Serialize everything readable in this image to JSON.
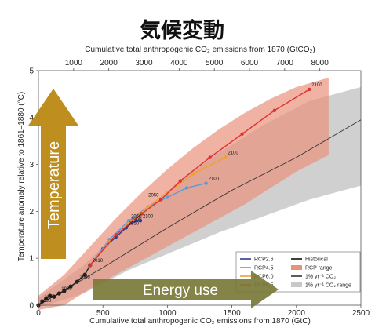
{
  "title": "気候変動",
  "chart_data": {
    "type": "line",
    "xlabel_bottom": "Cumulative total anthropogenic CO₂ emissions from 1870 (GtC)",
    "xlabel_top": "Cumulative total anthropogenic CO₂ emissions from 1870 (GtCO₂)",
    "ylabel": "Temperature anomaly relative to 1861–1880 (°C)",
    "xlim": [
      0,
      2500
    ],
    "ylim": [
      0,
      5
    ],
    "x_ticks": [
      "0",
      "500",
      "1000",
      "1500",
      "2000",
      "2500"
    ],
    "x_ticks_top": [
      "1000",
      "2000",
      "3000",
      "4000",
      "5000",
      "6000",
      "7000",
      "8000"
    ],
    "y_ticks": [
      "0",
      "1",
      "2",
      "3",
      "4",
      "5"
    ],
    "series": [
      {
        "name": "Historical",
        "color": "#222222",
        "x": [
          0,
          30,
          60,
          90,
          120,
          160,
          200,
          250,
          300,
          360,
          400
        ],
        "y": [
          0.0,
          0.08,
          0.15,
          0.2,
          0.18,
          0.25,
          0.3,
          0.4,
          0.5,
          0.65,
          0.85
        ],
        "labels": [
          {
            "i": 0,
            "text": "1890"
          },
          {
            "i": 1,
            "text": "1950"
          },
          {
            "i": 5,
            "text": "1980"
          },
          {
            "i": 8,
            "text": "2000"
          },
          {
            "i": 10,
            "text": "2010"
          }
        ]
      },
      {
        "name": "RCP2.6",
        "color": "#2b3a8f",
        "x": [
          400,
          500,
          600,
          680,
          720,
          760,
          790
        ],
        "y": [
          0.85,
          1.2,
          1.45,
          1.65,
          1.75,
          1.8,
          1.8
        ],
        "labels": [
          {
            "i": 3,
            "text": "2050"
          },
          {
            "i": 6,
            "text": "2100"
          }
        ]
      },
      {
        "name": "RCP4.5",
        "color": "#5e9ad6",
        "x": [
          400,
          550,
          700,
          850,
          1000,
          1150,
          1300
        ],
        "y": [
          0.85,
          1.4,
          1.8,
          2.1,
          2.3,
          2.5,
          2.6
        ],
        "labels": [
          {
            "i": 2,
            "text": "2050"
          },
          {
            "i": 6,
            "text": "2100"
          }
        ]
      },
      {
        "name": "RCP6.0",
        "color": "#f0a030",
        "x": [
          400,
          550,
          700,
          850,
          1000,
          1200,
          1450
        ],
        "y": [
          0.85,
          1.35,
          1.75,
          2.1,
          2.4,
          2.8,
          3.15
        ],
        "labels": [
          {
            "i": 2,
            "text": "2050"
          },
          {
            "i": 6,
            "text": "2100"
          }
        ]
      },
      {
        "name": "RCP8.5",
        "color": "#e03030",
        "x": [
          400,
          600,
          800,
          950,
          1100,
          1330,
          1580,
          1830,
          2100
        ],
        "y": [
          0.85,
          1.5,
          1.95,
          2.25,
          2.65,
          3.15,
          3.65,
          4.15,
          4.6
        ],
        "labels": [
          {
            "i": 3,
            "text": "2050"
          },
          {
            "i": 8,
            "text": "2100"
          }
        ]
      },
      {
        "name": "1% yr⁻¹ CO₂",
        "color": "#333333",
        "x": [
          0,
          500,
          1000,
          1500,
          2000,
          2500
        ],
        "y": [
          0.0,
          0.8,
          1.65,
          2.45,
          3.15,
          3.95
        ],
        "labels": []
      }
    ],
    "bands": [
      {
        "name": "1% yr⁻¹ CO₂ range",
        "color": "#c8c8c8",
        "x": [
          0,
          350,
          700,
          1050,
          1400,
          1750,
          2100,
          2500
        ],
        "upper": [
          0.15,
          0.85,
          1.75,
          2.55,
          3.25,
          3.85,
          4.35,
          4.65
        ],
        "lower": [
          -0.05,
          0.25,
          0.75,
          1.15,
          1.55,
          1.9,
          2.25,
          2.55
        ]
      },
      {
        "name": "RCP range",
        "color": "#e8927c",
        "x": [
          0,
          200,
          400,
          600,
          800,
          1000,
          1200,
          1400,
          1600,
          1800,
          2000,
          2250
        ],
        "upper": [
          0.2,
          0.65,
          1.25,
          1.85,
          2.4,
          2.9,
          3.35,
          3.75,
          4.1,
          4.4,
          4.65,
          4.85
        ],
        "lower": [
          -0.1,
          0.0,
          0.35,
          0.65,
          0.95,
          1.25,
          1.55,
          1.85,
          2.15,
          2.5,
          2.85,
          3.2
        ]
      }
    ],
    "legend": {
      "placement": "bottom-right",
      "left": [
        {
          "label": "RCP2.6",
          "kind": "line",
          "color": "#2b3a8f"
        },
        {
          "label": "RCP4.5",
          "kind": "line",
          "color": "#5e9ad6"
        },
        {
          "label": "RCP6.0",
          "kind": "line",
          "color": "#f0a030"
        },
        {
          "label": "RCP8.5",
          "kind": "line",
          "color": "#e03030"
        }
      ],
      "right": [
        {
          "label": "Historical",
          "kind": "line",
          "color": "#111111"
        },
        {
          "label": "RCP range",
          "kind": "band",
          "color": "#e8927c"
        },
        {
          "label": "1% yr⁻¹ CO₂",
          "kind": "line",
          "color": "#333333"
        },
        {
          "label": "1% yr⁻¹ CO₂ range",
          "kind": "band",
          "color": "#c8c8c8"
        }
      ]
    },
    "annotations": [
      {
        "text": "Temperature",
        "direction": "up",
        "color": "#b8860b"
      },
      {
        "text": "Energy use",
        "direction": "right",
        "color": "#7a7a3a"
      }
    ]
  }
}
